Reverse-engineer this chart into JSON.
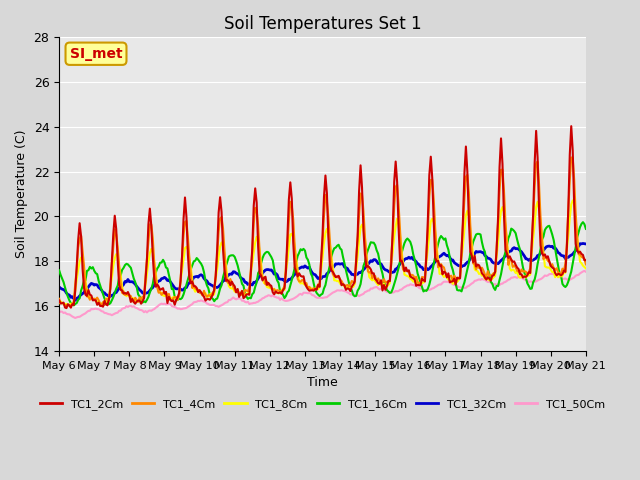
{
  "title": "Soil Temperatures Set 1",
  "xlabel": "Time",
  "ylabel": "Soil Temperature (C)",
  "ylim": [
    14,
    28
  ],
  "yticks": [
    14,
    16,
    18,
    20,
    22,
    24,
    26,
    28
  ],
  "xlim": [
    0,
    360
  ],
  "xtick_labels": [
    "May 6",
    "May 7",
    "May 8",
    "May 9",
    "May 10",
    "May 11",
    "May 12",
    "May 13",
    "May 14",
    "May 15",
    "May 16",
    "May 17",
    "May 18",
    "May 19",
    "May 20",
    "May 21"
  ],
  "xtick_positions": [
    0,
    24,
    48,
    72,
    96,
    120,
    144,
    168,
    192,
    216,
    240,
    264,
    288,
    312,
    336,
    360
  ],
  "colors": {
    "TC1_2Cm": "#cc0000",
    "TC1_4Cm": "#ff8800",
    "TC1_8Cm": "#ffff00",
    "TC1_16Cm": "#00cc00",
    "TC1_32Cm": "#0000cc",
    "TC1_50Cm": "#ff99cc"
  },
  "annotation_text": "SI_met",
  "annotation_color": "#cc0000",
  "annotation_bg": "#ffff99",
  "annotation_border": "#cc9900",
  "linewidth": 1.5,
  "linewidth_32cm": 2.0,
  "n_points": 361
}
